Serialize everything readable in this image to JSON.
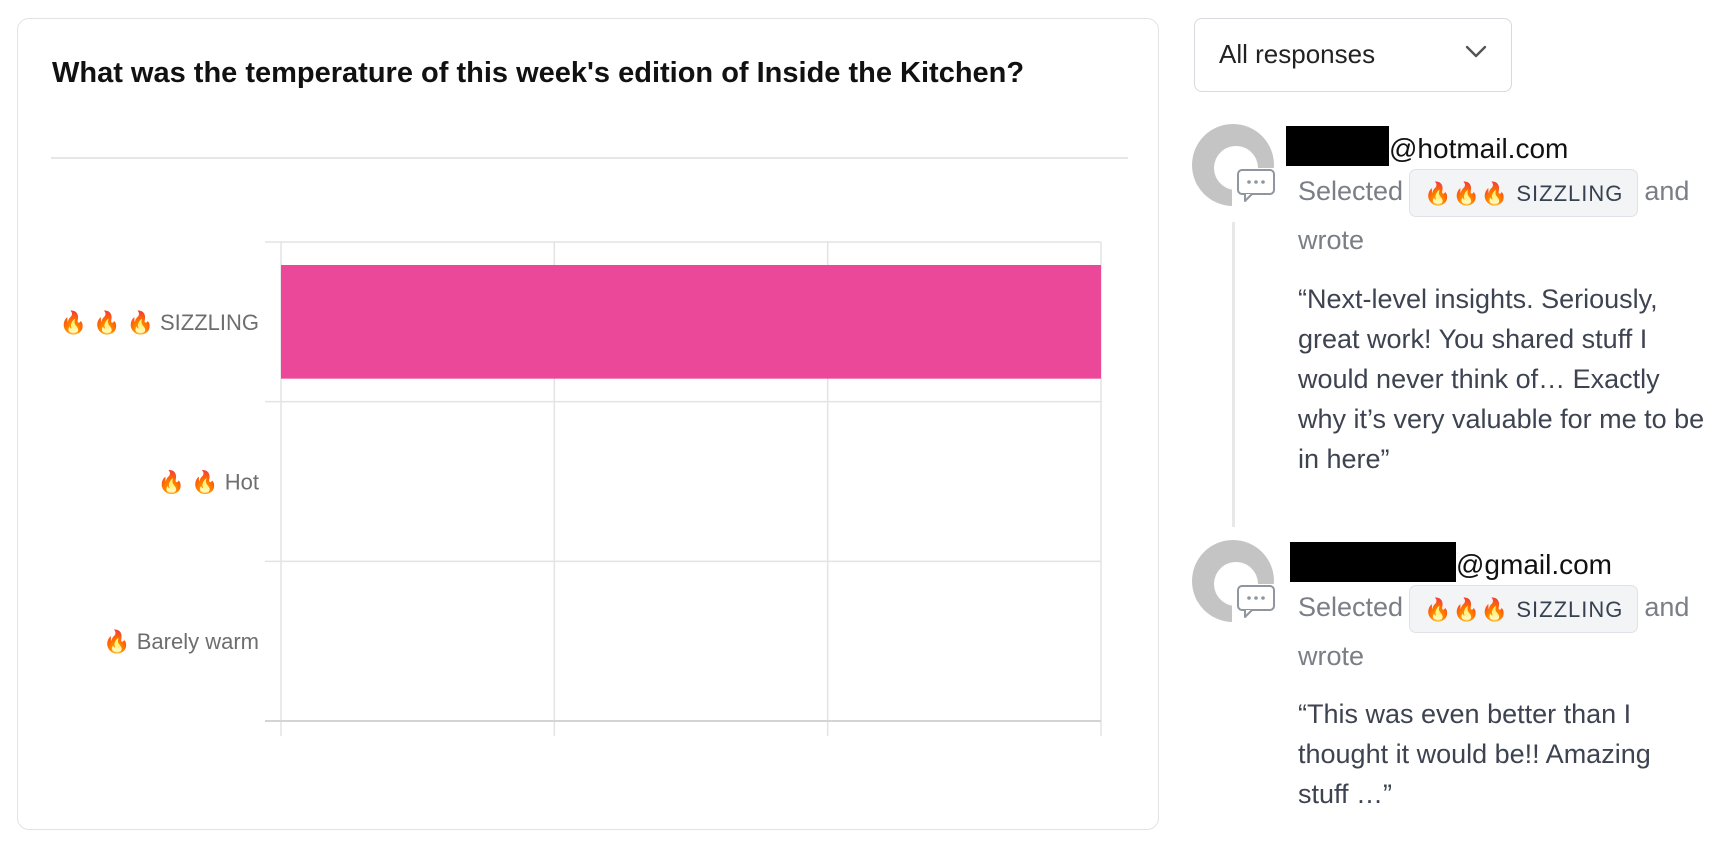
{
  "question": {
    "title": "What was the temperature of this week's edition of Inside the Kitchen?"
  },
  "chart_data": {
    "type": "bar",
    "orientation": "horizontal",
    "categories": [
      "🔥 🔥 🔥  SIZZLING",
      "🔥 🔥  Hot",
      "🔥  Barely warm"
    ],
    "values": [
      3,
      0,
      0
    ],
    "xlim": [
      0,
      3
    ],
    "grid": true,
    "bar_color": "#ec4899"
  },
  "filter": {
    "selected": "All responses",
    "icon": "chevron-down-icon"
  },
  "responses": [
    {
      "email_suffix": "@hotmail.com",
      "selected_prefix": "Selected",
      "badge": "🔥🔥🔥 SIZZLING",
      "selected_suffix": "and wrote",
      "quote": "“Next-level insights. Seriously, great work! You shared stuff I would never think of… Exactly why it’s very valuable for me to be in here”"
    },
    {
      "email_suffix": "@gmail.com",
      "selected_prefix": "Selected",
      "badge": "🔥🔥🔥 SIZZLING",
      "selected_suffix": "and wrote",
      "quote": "“This was even better than I thought it would be!! Amazing stuff …”"
    }
  ],
  "colors": {
    "accent": "#ec4899",
    "grid": "#e3e3e3",
    "muted_text": "#7a7f87"
  }
}
